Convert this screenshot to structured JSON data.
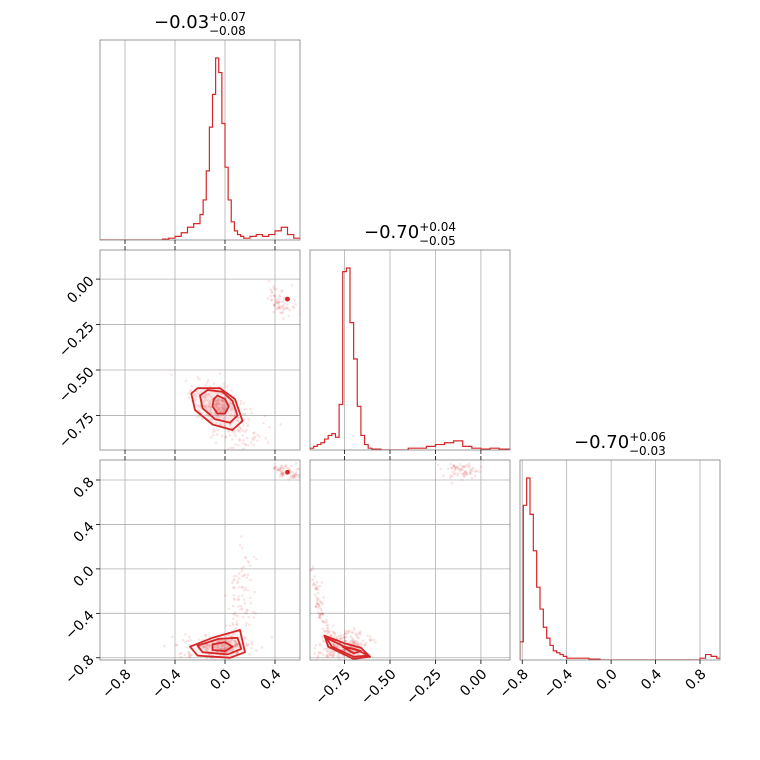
{
  "chart_data": {
    "type": "corner",
    "color": "#d62728",
    "grid": true,
    "parameters": [
      {
        "title": {
          "main": "−0.03",
          "plus": "+0.07",
          "minus": "−0.08"
        },
        "range": [
          -1.0,
          0.6
        ],
        "ticks": [
          -0.8,
          -0.4,
          0.0,
          0.4
        ],
        "tick_labels": [
          "−0.8",
          "−0.4",
          "0.0",
          "0.4"
        ]
      },
      {
        "title": {
          "main": "−0.70",
          "plus": "+0.04",
          "minus": "−0.05"
        },
        "range": [
          -0.94,
          0.16
        ],
        "ticks": [
          -0.75,
          -0.5,
          -0.25,
          0.0
        ],
        "tick_labels": [
          "−0.75",
          "−0.50",
          "−0.25",
          "0.00"
        ]
      },
      {
        "title": {
          "main": "−0.70",
          "plus": "+0.06",
          "minus": "−0.03"
        },
        "range": [
          -0.82,
          0.98
        ],
        "ticks": [
          -0.8,
          -0.4,
          0.0,
          0.4,
          0.8
        ],
        "tick_labels": [
          "−0.8",
          "−0.4",
          "0.0",
          "0.4",
          "0.8"
        ]
      }
    ],
    "histograms": [
      {
        "param": 0,
        "bin_edges": [
          -1.0,
          -0.9,
          -0.8,
          -0.7,
          -0.6,
          -0.5,
          -0.45,
          -0.4,
          -0.35,
          -0.3,
          -0.25,
          -0.2,
          -0.175,
          -0.15,
          -0.125,
          -0.1,
          -0.075,
          -0.05,
          -0.025,
          0.0,
          0.025,
          0.05,
          0.075,
          0.1,
          0.125,
          0.15,
          0.2,
          0.25,
          0.3,
          0.35,
          0.4,
          0.45,
          0.5,
          0.55,
          0.6
        ],
        "counts": [
          0,
          0,
          0,
          0,
          0,
          0.5,
          1,
          2,
          4,
          7,
          9,
          14,
          22,
          38,
          62,
          80,
          100,
          92,
          64,
          40,
          22,
          10,
          5,
          3,
          2,
          1,
          2,
          3,
          2,
          3,
          5,
          7,
          3,
          1
        ]
      },
      {
        "param": 1,
        "bin_edges": [
          -0.94,
          -0.92,
          -0.9,
          -0.88,
          -0.86,
          -0.84,
          -0.82,
          -0.8,
          -0.78,
          -0.76,
          -0.74,
          -0.72,
          -0.7,
          -0.68,
          -0.66,
          -0.64,
          -0.62,
          -0.6,
          -0.55,
          -0.5,
          -0.45,
          -0.4,
          -0.35,
          -0.3,
          -0.25,
          -0.2,
          -0.15,
          -0.1,
          -0.05,
          0.0,
          0.05,
          0.1,
          0.16
        ],
        "counts": [
          1,
          2,
          3,
          4,
          6,
          8,
          9,
          7,
          25,
          98,
          100,
          70,
          50,
          24,
          8,
          3,
          1,
          0.5,
          0,
          0,
          0,
          1,
          1,
          2,
          3,
          4,
          5,
          2,
          1,
          0.5,
          1,
          0.5
        ]
      },
      {
        "param": 2,
        "bin_edges": [
          -0.82,
          -0.79,
          -0.76,
          -0.73,
          -0.7,
          -0.67,
          -0.64,
          -0.61,
          -0.58,
          -0.55,
          -0.52,
          -0.49,
          -0.46,
          -0.43,
          -0.4,
          -0.3,
          -0.2,
          -0.1,
          0.0,
          0.2,
          0.4,
          0.6,
          0.7,
          0.8,
          0.85,
          0.9,
          0.95,
          0.98
        ],
        "counts": [
          10,
          85,
          100,
          80,
          60,
          40,
          28,
          18,
          12,
          8,
          5,
          4,
          3,
          2,
          1,
          1,
          0.5,
          0,
          0,
          0,
          0,
          0,
          0,
          1,
          3,
          2,
          1
        ]
      }
    ],
    "pair_plots": [
      {
        "x_param": 0,
        "y_param": 1,
        "mode": {
          "x": -0.03,
          "y": -0.7
        },
        "contours": [
          {
            "level": 0.39,
            "points": [
              [
                -0.06,
                -0.64
              ],
              [
                0.0,
                -0.66
              ],
              [
                0.03,
                -0.7
              ],
              [
                0.0,
                -0.74
              ],
              [
                -0.06,
                -0.74
              ],
              [
                -0.1,
                -0.7
              ],
              [
                -0.09,
                -0.66
              ]
            ]
          },
          {
            "level": 0.86,
            "points": [
              [
                -0.14,
                -0.61
              ],
              [
                -0.02,
                -0.62
              ],
              [
                0.06,
                -0.67
              ],
              [
                0.1,
                -0.75
              ],
              [
                0.04,
                -0.79
              ],
              [
                -0.08,
                -0.77
              ],
              [
                -0.18,
                -0.71
              ],
              [
                -0.2,
                -0.64
              ]
            ]
          },
          {
            "level": 0.99,
            "points": [
              [
                -0.22,
                -0.6
              ],
              [
                -0.04,
                -0.6
              ],
              [
                0.08,
                -0.66
              ],
              [
                0.14,
                -0.78
              ],
              [
                0.06,
                -0.83
              ],
              [
                -0.1,
                -0.8
              ],
              [
                -0.24,
                -0.72
              ],
              [
                -0.27,
                -0.63
              ]
            ]
          }
        ],
        "clusters": [
          {
            "x": -0.05,
            "y": -0.71,
            "sx": 0.12,
            "sy": 0.06,
            "rot": -0.4,
            "n": 260
          },
          {
            "x": 0.45,
            "y": -0.12,
            "sx": 0.05,
            "sy": 0.04,
            "rot": 0.0,
            "n": 70
          },
          {
            "x": 0.18,
            "y": -0.88,
            "sx": 0.1,
            "sy": 0.05,
            "rot": 0.3,
            "n": 45
          }
        ],
        "hot_spots": [
          [
            0.5,
            -0.11
          ]
        ]
      },
      {
        "x_param": 0,
        "y_param": 2,
        "mode": {
          "x": -0.03,
          "y": -0.7
        },
        "contours": [
          {
            "level": 0.39,
            "points": [
              [
                -0.1,
                -0.68
              ],
              [
                0.0,
                -0.66
              ],
              [
                0.06,
                -0.7
              ],
              [
                0.0,
                -0.74
              ],
              [
                -0.1,
                -0.73
              ]
            ]
          },
          {
            "level": 0.86,
            "points": [
              [
                -0.22,
                -0.69
              ],
              [
                -0.05,
                -0.63
              ],
              [
                0.1,
                -0.62
              ],
              [
                0.13,
                -0.72
              ],
              [
                0.02,
                -0.77
              ],
              [
                -0.18,
                -0.75
              ]
            ]
          },
          {
            "level": 0.99,
            "points": [
              [
                -0.28,
                -0.7
              ],
              [
                -0.1,
                -0.62
              ],
              [
                0.12,
                -0.55
              ],
              [
                0.16,
                -0.75
              ],
              [
                0.04,
                -0.8
              ],
              [
                -0.22,
                -0.78
              ]
            ]
          }
        ],
        "clusters": [
          {
            "x": -0.05,
            "y": -0.7,
            "sx": 0.14,
            "sy": 0.05,
            "rot": 0.0,
            "n": 220
          },
          {
            "x": 0.12,
            "y": -0.3,
            "sx": 0.06,
            "sy": 0.25,
            "rot": 0.0,
            "n": 90
          },
          {
            "x": 0.5,
            "y": 0.87,
            "sx": 0.07,
            "sy": 0.03,
            "rot": -0.3,
            "n": 70
          }
        ],
        "hot_spots": [
          [
            0.5,
            0.87
          ]
        ]
      },
      {
        "x_param": 1,
        "y_param": 2,
        "mode": {
          "x": -0.7,
          "y": -0.7
        },
        "contours": [
          {
            "level": 0.39,
            "points": [
              [
                -0.76,
                -0.7
              ],
              [
                -0.7,
                -0.72
              ],
              [
                -0.66,
                -0.74
              ],
              [
                -0.7,
                -0.76
              ]
            ]
          },
          {
            "level": 0.86,
            "points": [
              [
                -0.85,
                -0.62
              ],
              [
                -0.75,
                -0.7
              ],
              [
                -0.68,
                -0.73
              ],
              [
                -0.62,
                -0.78
              ],
              [
                -0.7,
                -0.79
              ],
              [
                -0.82,
                -0.7
              ]
            ]
          },
          {
            "level": 0.99,
            "points": [
              [
                -0.86,
                -0.6
              ],
              [
                -0.75,
                -0.67
              ],
              [
                -0.66,
                -0.71
              ],
              [
                -0.61,
                -0.79
              ],
              [
                -0.7,
                -0.81
              ],
              [
                -0.84,
                -0.7
              ]
            ]
          }
        ],
        "clusters": [
          {
            "x": -0.76,
            "y": -0.69,
            "sx": 0.06,
            "sy": 0.08,
            "rot": -0.9,
            "n": 220
          },
          {
            "x": -0.1,
            "y": 0.88,
            "sx": 0.05,
            "sy": 0.04,
            "rot": 0.0,
            "n": 70
          }
        ],
        "curve": {
          "points": [
            [
              -0.93,
              0.0
            ],
            [
              -0.9,
              -0.25
            ],
            [
              -0.87,
              -0.45
            ],
            [
              -0.83,
              -0.6
            ]
          ],
          "n": 80
        },
        "hot_spots": []
      }
    ]
  }
}
